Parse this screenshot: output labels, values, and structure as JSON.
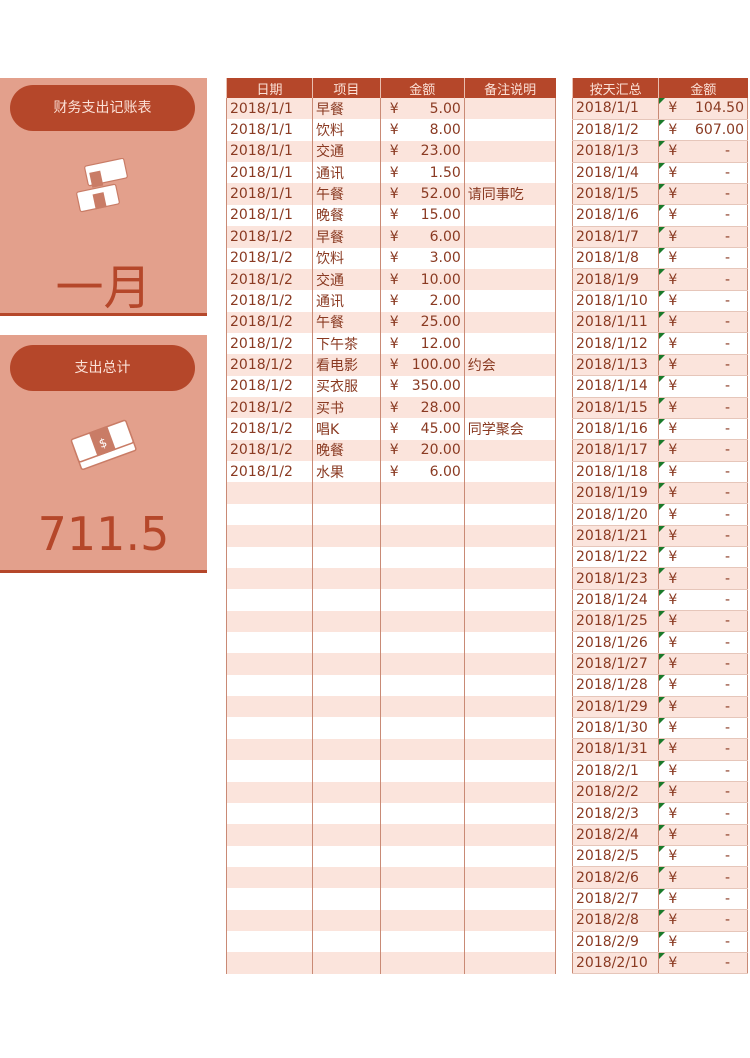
{
  "left_panel": {
    "title": "财务支出记账表",
    "month": "一月",
    "total_label": "支出总计",
    "total_value": "711.5",
    "icons": [
      "money-stack-icon",
      "money-bundle-icon"
    ]
  },
  "ledger": {
    "headers": [
      "日期",
      "项目",
      "金额",
      "备注说明"
    ],
    "currency": "¥",
    "rows": [
      [
        "2018/1/1",
        "早餐",
        "5.00",
        ""
      ],
      [
        "2018/1/1",
        "饮料",
        "8.00",
        ""
      ],
      [
        "2018/1/1",
        "交通",
        "23.00",
        ""
      ],
      [
        "2018/1/1",
        "通讯",
        "1.50",
        ""
      ],
      [
        "2018/1/1",
        "午餐",
        "52.00",
        "请同事吃"
      ],
      [
        "2018/1/1",
        "晚餐",
        "15.00",
        ""
      ],
      [
        "2018/1/2",
        "早餐",
        "6.00",
        ""
      ],
      [
        "2018/1/2",
        "饮料",
        "3.00",
        ""
      ],
      [
        "2018/1/2",
        "交通",
        "10.00",
        ""
      ],
      [
        "2018/1/2",
        "通讯",
        "2.00",
        ""
      ],
      [
        "2018/1/2",
        "午餐",
        "25.00",
        ""
      ],
      [
        "2018/1/2",
        "下午茶",
        "12.00",
        ""
      ],
      [
        "2018/1/2",
        "看电影",
        "100.00",
        "约会"
      ],
      [
        "2018/1/2",
        "买衣服",
        "350.00",
        ""
      ],
      [
        "2018/1/2",
        "买书",
        "28.00",
        ""
      ],
      [
        "2018/1/2",
        "唱K",
        "45.00",
        "同学聚会"
      ],
      [
        "2018/1/2",
        "晚餐",
        "20.00",
        ""
      ],
      [
        "2018/1/2",
        "水果",
        "6.00",
        ""
      ]
    ],
    "empty_rows": 23
  },
  "daily_summary": {
    "headers": [
      "按天汇总",
      "金额"
    ],
    "currency": "¥",
    "empty_value": "-",
    "rows": [
      [
        "2018/1/1",
        "104.50"
      ],
      [
        "2018/1/2",
        "607.00"
      ],
      [
        "2018/1/3",
        "-"
      ],
      [
        "2018/1/4",
        "-"
      ],
      [
        "2018/1/5",
        "-"
      ],
      [
        "2018/1/6",
        "-"
      ],
      [
        "2018/1/7",
        "-"
      ],
      [
        "2018/1/8",
        "-"
      ],
      [
        "2018/1/9",
        "-"
      ],
      [
        "2018/1/10",
        "-"
      ],
      [
        "2018/1/11",
        "-"
      ],
      [
        "2018/1/12",
        "-"
      ],
      [
        "2018/1/13",
        "-"
      ],
      [
        "2018/1/14",
        "-"
      ],
      [
        "2018/1/15",
        "-"
      ],
      [
        "2018/1/16",
        "-"
      ],
      [
        "2018/1/17",
        "-"
      ],
      [
        "2018/1/18",
        "-"
      ],
      [
        "2018/1/19",
        "-"
      ],
      [
        "2018/1/20",
        "-"
      ],
      [
        "2018/1/21",
        "-"
      ],
      [
        "2018/1/22",
        "-"
      ],
      [
        "2018/1/23",
        "-"
      ],
      [
        "2018/1/24",
        "-"
      ],
      [
        "2018/1/25",
        "-"
      ],
      [
        "2018/1/26",
        "-"
      ],
      [
        "2018/1/27",
        "-"
      ],
      [
        "2018/1/28",
        "-"
      ],
      [
        "2018/1/29",
        "-"
      ],
      [
        "2018/1/30",
        "-"
      ],
      [
        "2018/1/31",
        "-"
      ],
      [
        "2018/2/1",
        "-"
      ],
      [
        "2018/2/2",
        "-"
      ],
      [
        "2018/2/3",
        "-"
      ],
      [
        "2018/2/4",
        "-"
      ],
      [
        "2018/2/5",
        "-"
      ],
      [
        "2018/2/6",
        "-"
      ],
      [
        "2018/2/7",
        "-"
      ],
      [
        "2018/2/8",
        "-"
      ],
      [
        "2018/2/9",
        "-"
      ],
      [
        "2018/2/10",
        "-"
      ]
    ]
  },
  "colors": {
    "accent": "#b5472a",
    "panel": "#e3a08c",
    "stripe": "#fbe4dc",
    "text": "#8a3a22"
  }
}
